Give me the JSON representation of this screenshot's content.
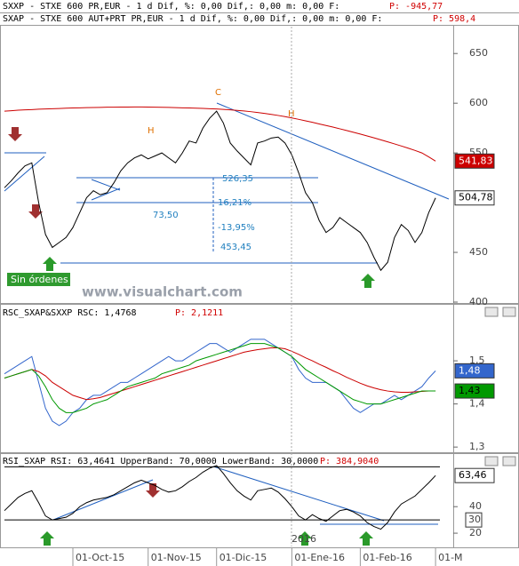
{
  "chart_data": [
    {
      "type": "line",
      "title": "SXXP - STXE 600 PR,EUR -  1 d Dif, %: 0,00 Dif,: 0,00 m: 0,00 F:",
      "title_value": "P: -945,77",
      "subtitle": "SXAP - STXE 600 AUT+PRT PR,EUR -  1 d Dif, %: 0,00 Dif,: 0,00 m: 0,00 F:",
      "subtitle_value": "P: 598,4",
      "ylim": [
        400,
        677
      ],
      "yticks": [
        400,
        450,
        550,
        600,
        650
      ],
      "series": [
        {
          "color": "#000000",
          "last_label": "504,78",
          "values": [
            515,
            522,
            530,
            537,
            540,
            500,
            468,
            455,
            460,
            465,
            475,
            490,
            505,
            512,
            508,
            510,
            520,
            532,
            540,
            545,
            548,
            544,
            547,
            550,
            545,
            540,
            550,
            562,
            560,
            575,
            585,
            592,
            580,
            560,
            552,
            545,
            538,
            560,
            562,
            565,
            566,
            560,
            548,
            530,
            510,
            500,
            482,
            470,
            475,
            485,
            480,
            475,
            470,
            460,
            445,
            432,
            440,
            465,
            478,
            472,
            460,
            470,
            490,
            504.78
          ]
        },
        {
          "color": "#cc0000",
          "last_label": "541,83",
          "values": [
            592,
            592.5,
            593,
            593.3,
            593.6,
            594,
            594.2,
            594.5,
            594.7,
            595,
            595.2,
            595.4,
            595.6,
            595.7,
            595.8,
            596,
            596,
            596.1,
            596.1,
            596.2,
            596.2,
            596.1,
            596,
            595.9,
            595.8,
            595.6,
            595.4,
            595.2,
            595,
            594.8,
            594.5,
            594.2,
            593.8,
            593.3,
            592.8,
            592.2,
            591.5,
            590.7,
            589.8,
            588.8,
            587.7,
            586.5,
            585.2,
            583.8,
            582.3,
            580.8,
            579.2,
            577.6,
            576,
            574.3,
            572.6,
            570.8,
            569,
            567.1,
            565.2,
            563.2,
            561.2,
            559.1,
            557,
            554.8,
            552.5,
            550,
            546,
            541.83
          ]
        }
      ],
      "annotations": [
        "C",
        "H",
        "H",
        "526,35",
        "16,21%",
        "73,50",
        "-13,95%",
        "453,45"
      ],
      "label": "Sin órdenes",
      "watermark": "www.visualchart.com"
    },
    {
      "type": "line",
      "title": "RSC_SXAP&SXXP RSC: 1,4768",
      "title_value": "P: 2,1211",
      "ylim": [
        1.29,
        1.63
      ],
      "yticks": [
        {
          "value": 1.3,
          "label": "1,3"
        },
        {
          "value": 1.4,
          "label": "1,4"
        },
        {
          "value": 1.5,
          "label": "1,5"
        }
      ],
      "series": [
        {
          "color": "#3366cc",
          "last_label": "1,48",
          "values": [
            1.47,
            1.48,
            1.49,
            1.5,
            1.51,
            1.45,
            1.39,
            1.36,
            1.35,
            1.36,
            1.38,
            1.39,
            1.41,
            1.42,
            1.42,
            1.43,
            1.44,
            1.45,
            1.45,
            1.46,
            1.47,
            1.48,
            1.49,
            1.5,
            1.51,
            1.5,
            1.5,
            1.51,
            1.52,
            1.53,
            1.54,
            1.54,
            1.53,
            1.52,
            1.53,
            1.54,
            1.55,
            1.55,
            1.55,
            1.54,
            1.53,
            1.52,
            1.51,
            1.48,
            1.46,
            1.45,
            1.45,
            1.45,
            1.44,
            1.43,
            1.41,
            1.39,
            1.38,
            1.39,
            1.4,
            1.4,
            1.41,
            1.42,
            1.41,
            1.42,
            1.43,
            1.44,
            1.46,
            1.4768
          ]
        },
        {
          "color": "#cc0000",
          "values": [
            1.46,
            1.465,
            1.47,
            1.475,
            1.48,
            1.475,
            1.465,
            1.45,
            1.44,
            1.43,
            1.42,
            1.415,
            1.41,
            1.412,
            1.415,
            1.42,
            1.425,
            1.43,
            1.435,
            1.44,
            1.445,
            1.45,
            1.455,
            1.46,
            1.465,
            1.47,
            1.475,
            1.48,
            1.485,
            1.49,
            1.495,
            1.5,
            1.505,
            1.51,
            1.515,
            1.52,
            1.523,
            1.526,
            1.528,
            1.53,
            1.53,
            1.528,
            1.522,
            1.515,
            1.507,
            1.5,
            1.492,
            1.485,
            1.477,
            1.47,
            1.462,
            1.455,
            1.448,
            1.442,
            1.437,
            1.433,
            1.43,
            1.428,
            1.427,
            1.427,
            1.428,
            1.429,
            1.43,
            1.43
          ]
        },
        {
          "color": "#009900",
          "last_label": "1,43",
          "values": [
            1.46,
            1.465,
            1.47,
            1.475,
            1.48,
            1.465,
            1.44,
            1.41,
            1.39,
            1.38,
            1.38,
            1.385,
            1.39,
            1.4,
            1.405,
            1.41,
            1.42,
            1.43,
            1.44,
            1.445,
            1.45,
            1.455,
            1.46,
            1.47,
            1.475,
            1.48,
            1.485,
            1.49,
            1.5,
            1.505,
            1.51,
            1.515,
            1.52,
            1.525,
            1.53,
            1.535,
            1.54,
            1.54,
            1.54,
            1.535,
            1.53,
            1.52,
            1.51,
            1.495,
            1.48,
            1.47,
            1.46,
            1.45,
            1.44,
            1.43,
            1.42,
            1.41,
            1.405,
            1.4,
            1.4,
            1.4,
            1.405,
            1.41,
            1.415,
            1.42,
            1.425,
            1.43,
            1.43,
            1.43
          ]
        }
      ]
    },
    {
      "type": "line",
      "title": "RSI_SXAP RSI: 63,4641 UpperBand: 70,0000 LowerBand: 30,0000",
      "title_value": "P: 384,9040",
      "ylim": [
        10,
        79
      ],
      "yticks": [
        20,
        40
      ],
      "bands": [
        30,
        70
      ],
      "categories": [
        null,
        null,
        null,
        null,
        null,
        null,
        null,
        null,
        null,
        null,
        "01-Oct-15",
        null,
        null,
        null,
        null,
        null,
        null,
        null,
        null,
        null,
        null,
        "01-Nov-15",
        null,
        null,
        null,
        null,
        null,
        null,
        null,
        null,
        null,
        "01-Dic-15",
        null,
        null,
        null,
        null,
        null,
        null,
        null,
        null,
        null,
        null,
        "01-Ene-16",
        null,
        null,
        null,
        null,
        null,
        null,
        null,
        null,
        null,
        "01-Feb-16",
        null,
        null,
        null,
        null,
        null,
        null,
        null,
        null,
        null,
        null,
        "01-M"
      ],
      "year_label": "2016",
      "series": [
        {
          "color": "#000000",
          "last_label": "63,46",
          "values": [
            37,
            42,
            47,
            50,
            52,
            43,
            33,
            30,
            31,
            32,
            35,
            40,
            43,
            45,
            46,
            47,
            49,
            52,
            55,
            58,
            60,
            58,
            56,
            53,
            51,
            52,
            55,
            59,
            62,
            66,
            69,
            71,
            65,
            58,
            52,
            48,
            45,
            52,
            53,
            54,
            51,
            46,
            40,
            33,
            30,
            34,
            31,
            29,
            33,
            37,
            38,
            36,
            33,
            28,
            25,
            23,
            28,
            36,
            42,
            45,
            48,
            53,
            58,
            63.46
          ]
        }
      ]
    }
  ]
}
